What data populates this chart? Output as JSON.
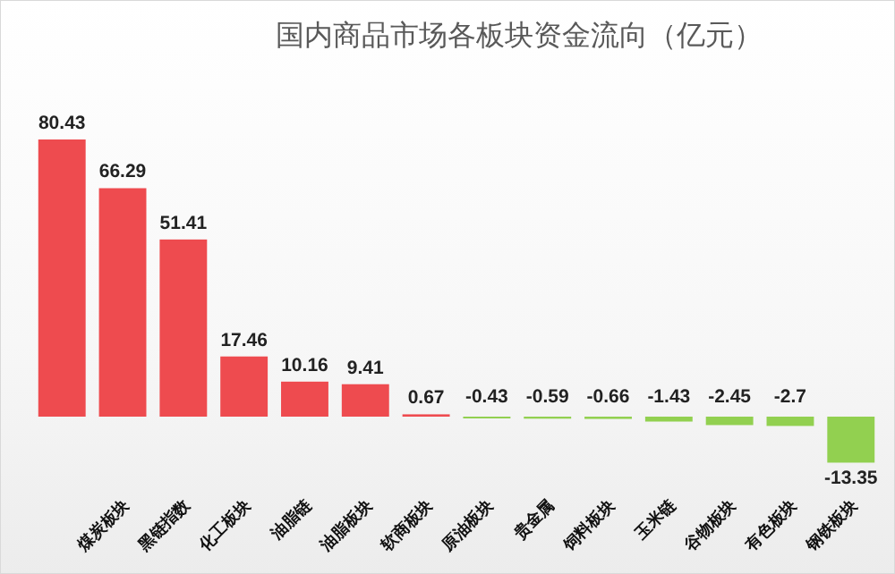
{
  "chart_data": {
    "type": "bar",
    "title": "国内商品市场各板块资金流向（亿元）",
    "categories": [
      null,
      "煤炭板块",
      "黑链指数",
      "化工板块",
      "油脂链",
      "油脂板块",
      "软商板块",
      "原油板块",
      "贵金属",
      "饲料板块",
      "玉米链",
      "谷物板块",
      "有色板块",
      "钢铁板块"
    ],
    "values": [
      80.43,
      66.29,
      51.41,
      17.46,
      10.16,
      9.41,
      0.67,
      -0.43,
      -0.59,
      -0.66,
      -1.43,
      -2.45,
      -2.7,
      -13.35
    ],
    "colors": [
      "#ee4b4f",
      "#ee4b4f",
      "#ee4b4f",
      "#ee4b4f",
      "#ee4b4f",
      "#ee4b4f",
      "#ee4b4f",
      "#92d050",
      "#92d050",
      "#92d050",
      "#92d050",
      "#92d050",
      "#92d050",
      "#92d050"
    ],
    "data_labels": true
  }
}
